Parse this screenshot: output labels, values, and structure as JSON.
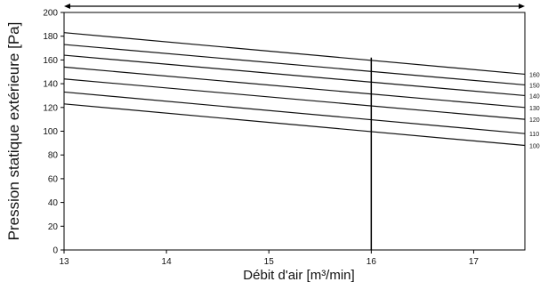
{
  "chart_data": {
    "type": "line",
    "title": "",
    "xlabel": "Débit d'air [m³/min]",
    "ylabel": "Pression statique extérieure [Pa]",
    "xlim": [
      13,
      17.5
    ],
    "ylim": [
      0,
      200
    ],
    "x_ticks": [
      13,
      14,
      15,
      16,
      17
    ],
    "y_ticks": [
      0,
      20,
      40,
      60,
      80,
      100,
      120,
      140,
      160,
      180,
      200
    ],
    "x_tick_labels": [
      "13",
      "14",
      "15",
      "16",
      "17"
    ],
    "y_tick_labels": [
      "0",
      "20",
      "40",
      "60",
      "80",
      "100",
      "120",
      "140",
      "160",
      "180",
      "200"
    ],
    "grid": false,
    "legend": "right-end labels",
    "x": [
      13,
      17.5
    ],
    "series": [
      {
        "name": "160",
        "values": [
          183,
          148
        ]
      },
      {
        "name": "150",
        "values": [
          173,
          139
        ]
      },
      {
        "name": "140",
        "values": [
          164,
          130
        ]
      },
      {
        "name": "130",
        "values": [
          154,
          120
        ]
      },
      {
        "name": "120",
        "values": [
          144,
          110
        ]
      },
      {
        "name": "110",
        "values": [
          133,
          98
        ]
      },
      {
        "name": "100",
        "values": [
          123,
          88
        ]
      }
    ],
    "vertical_marker": {
      "x": 16,
      "y_top": 162
    },
    "range_indicator": {
      "x_start": 13,
      "x_end": 17.5
    }
  }
}
